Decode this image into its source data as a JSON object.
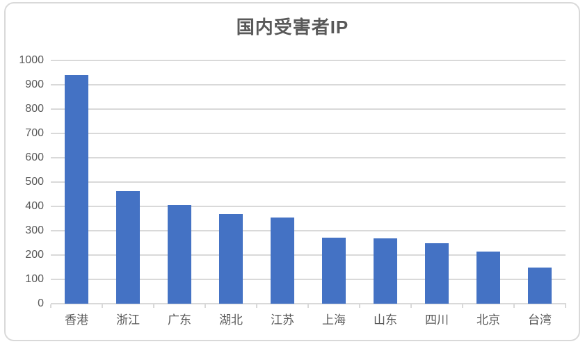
{
  "chart_data": {
    "type": "bar",
    "title": "国内受害者IP",
    "categories": [
      "香港",
      "浙江",
      "广东",
      "湖北",
      "江苏",
      "上海",
      "山东",
      "四川",
      "北京",
      "台湾"
    ],
    "values": [
      940,
      462,
      405,
      368,
      355,
      272,
      268,
      250,
      214,
      150
    ],
    "xlabel": "",
    "ylabel": "",
    "ylim": [
      0,
      1000
    ],
    "ytick_step": 100,
    "yticks": [
      0,
      100,
      200,
      300,
      400,
      500,
      600,
      700,
      800,
      900,
      1000
    ],
    "grid": true,
    "legend_position": "none"
  },
  "colors": {
    "bar": "#4472C4",
    "grid": "#D9D9D9",
    "text": "#595959",
    "frame_border": "#D9D9D9",
    "background": "#FFFFFF"
  }
}
